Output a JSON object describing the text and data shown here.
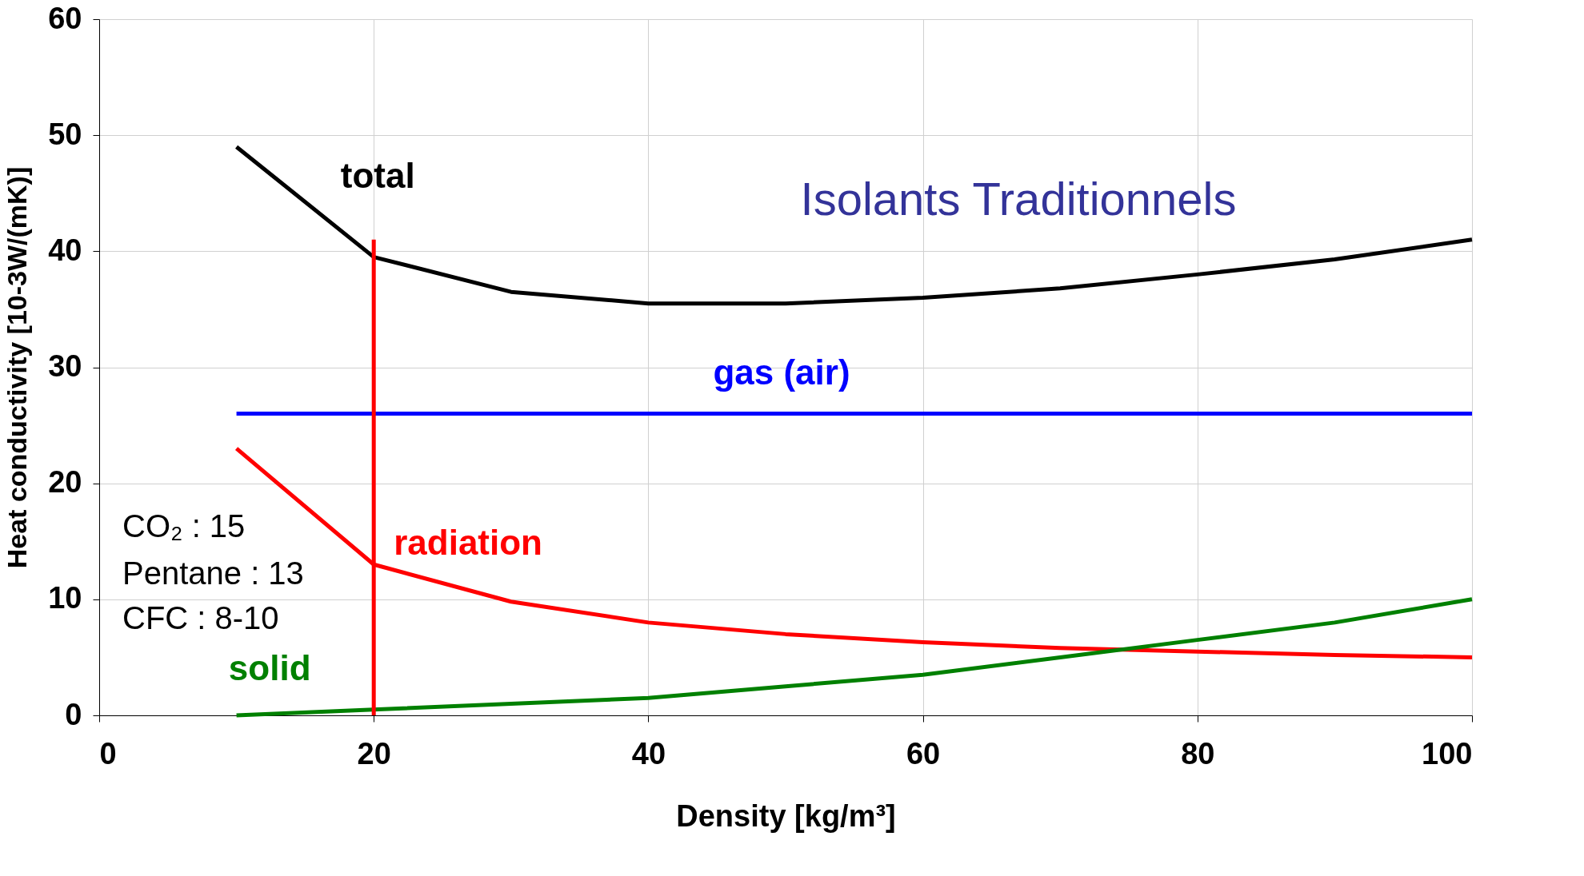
{
  "chart_data": {
    "type": "line",
    "xlabel": "Density [kg/m³]",
    "ylabel": "Heat conductivity [10-3W/(mK)]",
    "x": [
      10,
      20,
      30,
      40,
      50,
      60,
      70,
      80,
      90,
      100
    ],
    "xlim": [
      0,
      100
    ],
    "xticks": [
      0,
      20,
      40,
      60,
      80,
      100
    ],
    "ylim": [
      0,
      60
    ],
    "yticks": [
      0,
      10,
      20,
      30,
      40,
      50,
      60
    ],
    "grid": true,
    "marker": "none",
    "line_style": "solid",
    "series": [
      {
        "name": "total",
        "color": "#000000",
        "values": [
          49,
          39.5,
          36.5,
          35.5,
          35.5,
          36,
          36.8,
          38,
          39.3,
          41
        ]
      },
      {
        "name": "gas (air)",
        "color": "#0000ff",
        "values": [
          26,
          26,
          26,
          26,
          26,
          26,
          26,
          26,
          26,
          26
        ]
      },
      {
        "name": "radiation",
        "color": "#ff0000",
        "values": [
          23,
          13,
          9.8,
          8,
          7,
          6.3,
          5.8,
          5.5,
          5.2,
          5
        ]
      },
      {
        "name": "solid",
        "color": "#008000",
        "values": [
          0,
          0.5,
          1,
          1.5,
          2.5,
          3.5,
          5,
          6.5,
          8,
          10
        ]
      },
      {
        "color": "#ff0000",
        "x": [
          20,
          20
        ],
        "values": [
          0,
          41
        ]
      }
    ],
    "annotations": [
      "Isolants Traditionnels",
      "CO₂ : 15",
      "Pentane : 13",
      "CFC : 8-10"
    ]
  }
}
